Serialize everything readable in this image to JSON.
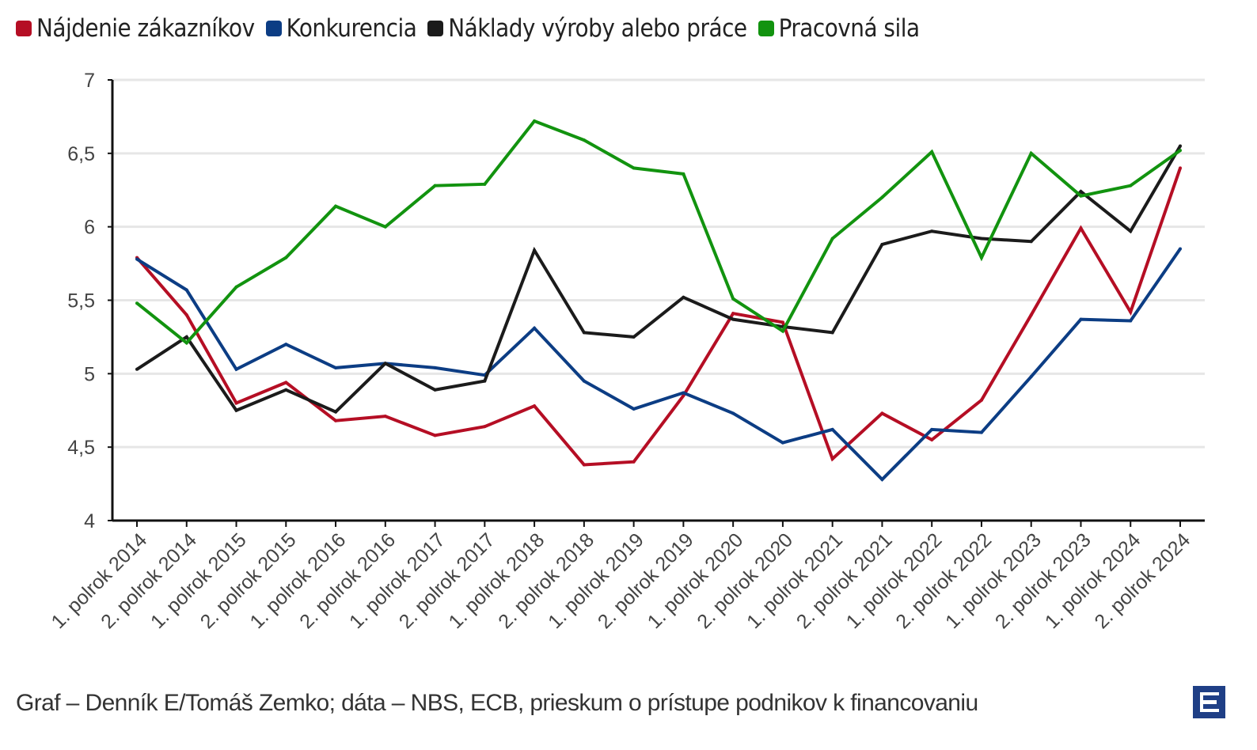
{
  "chart_data": {
    "type": "line",
    "categories": [
      "1. polrok 2014",
      "2. polrok 2014",
      "1. polrok 2015",
      "2. polrok 2015",
      "1. polrok 2016",
      "2. polrok 2016",
      "1. polrok 2017",
      "2. polrok 2017",
      "1. polrok 2018",
      "2. polrok 2018",
      "1. polrok 2019",
      "2. polrok 2019",
      "1. polrok 2020",
      "2. polrok 2020",
      "1. polrok 2021",
      "2. polrok 2021",
      "1. polrok 2022",
      "2. polrok 2022",
      "1. polrok 2023",
      "2. polrok 2023",
      "1. polrok 2024",
      "2. polrok 2024"
    ],
    "ylim": [
      4,
      7
    ],
    "yticks": [
      {
        "v": 4,
        "label": "4"
      },
      {
        "v": 4.5,
        "label": "4,5"
      },
      {
        "v": 5,
        "label": "5"
      },
      {
        "v": 5.5,
        "label": "5,5"
      },
      {
        "v": 6,
        "label": "6"
      },
      {
        "v": 6.5,
        "label": "6,5"
      },
      {
        "v": 7,
        "label": "7"
      }
    ],
    "grid": true,
    "legend_position": "top-left",
    "series": [
      {
        "name": "Nájdenie zákazníkov",
        "color": "#b50e24",
        "values": [
          5.79,
          5.4,
          4.8,
          4.94,
          4.68,
          4.71,
          4.58,
          4.64,
          4.78,
          4.38,
          4.4,
          4.85,
          5.41,
          5.35,
          4.42,
          4.73,
          4.55,
          4.82,
          5.4,
          5.99,
          5.42,
          6.4
        ]
      },
      {
        "name": "Konkurencia",
        "color": "#0c3d84",
        "values": [
          5.78,
          5.57,
          5.03,
          5.2,
          5.04,
          5.07,
          5.04,
          4.99,
          5.31,
          4.95,
          4.76,
          4.87,
          4.73,
          4.53,
          4.62,
          4.28,
          4.62,
          4.6,
          4.98,
          5.37,
          5.36,
          5.85
        ]
      },
      {
        "name": "Náklady výroby alebo práce",
        "color": "#1b1b1b",
        "values": [
          5.03,
          5.25,
          4.75,
          4.89,
          4.74,
          5.07,
          4.89,
          4.95,
          5.84,
          5.28,
          5.25,
          5.52,
          5.37,
          5.32,
          5.28,
          5.88,
          5.97,
          5.92,
          5.9,
          6.24,
          5.97,
          6.55
        ]
      },
      {
        "name": "Pracovná sila",
        "color": "#12930f",
        "values": [
          5.48,
          5.21,
          5.59,
          5.79,
          6.14,
          6.0,
          6.28,
          6.29,
          6.72,
          6.59,
          6.4,
          6.36,
          5.51,
          5.29,
          5.92,
          6.2,
          6.51,
          5.79,
          6.5,
          6.21,
          6.28,
          6.52
        ]
      }
    ]
  },
  "footer": "Graf – Denník E/Tomáš Zemko; dáta – NBS, ECB, prieskum o prístupe podnikov k financovaniu",
  "logo": {
    "text": "E",
    "color": "#1f3f86"
  }
}
